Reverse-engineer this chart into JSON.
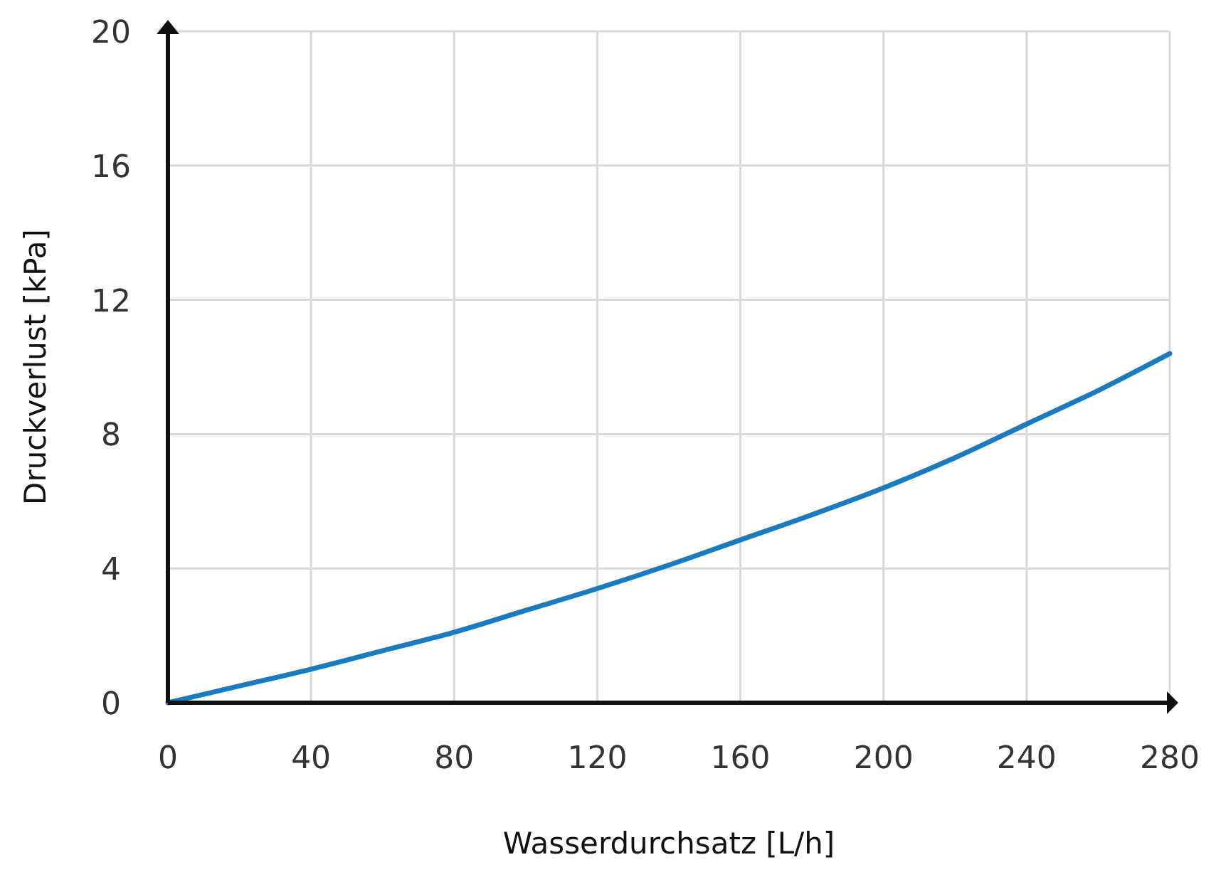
{
  "chart_data": {
    "type": "line",
    "xlabel": "Wasserdurchsatz [L/h]",
    "ylabel": "Druckverlust [kPa]",
    "x": [
      0,
      20,
      40,
      60,
      80,
      100,
      120,
      140,
      160,
      180,
      200,
      220,
      240,
      260,
      280
    ],
    "series": [
      {
        "color": "#1a7bbf",
        "values": [
          0,
          0.5,
          1.0,
          1.55,
          2.1,
          2.75,
          3.4,
          4.1,
          4.85,
          5.6,
          6.4,
          7.3,
          8.3,
          9.3,
          10.4
        ]
      }
    ],
    "xlim": [
      0,
      280
    ],
    "ylim": [
      0,
      20
    ],
    "xticks": [
      0,
      40,
      80,
      120,
      160,
      200,
      240,
      280
    ],
    "yticks": [
      0,
      4,
      8,
      12,
      16,
      20
    ],
    "grid": true,
    "marker": "none",
    "line_style": "solid"
  }
}
